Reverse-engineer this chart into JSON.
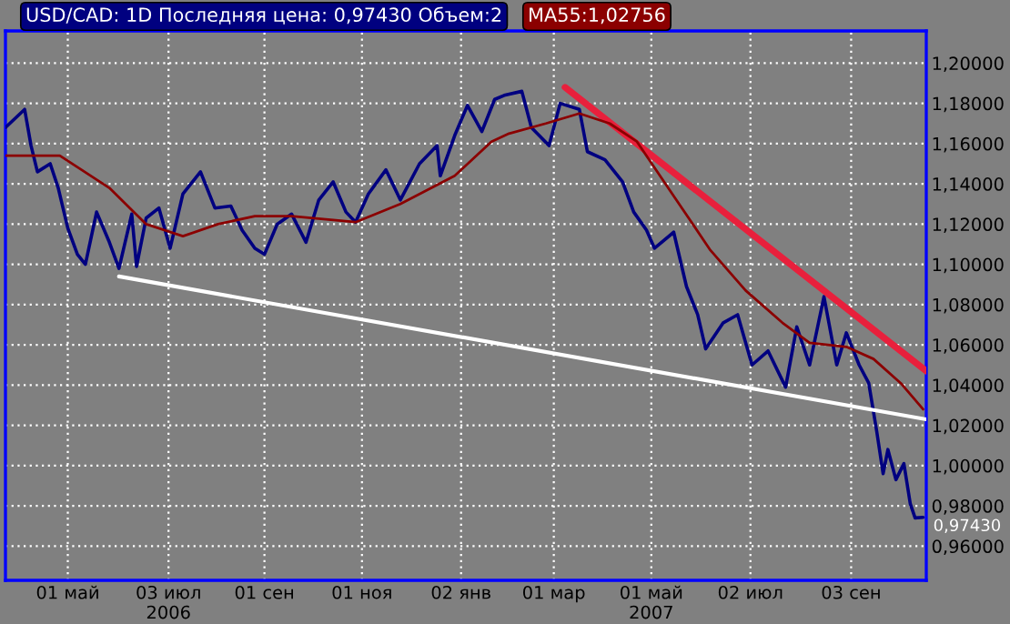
{
  "chart_data": {
    "type": "line",
    "xlim": [
      "2006-03-23",
      "2007-10-20"
    ],
    "xticks": [
      {
        "value": "2006-05-01",
        "label": "01 май"
      },
      {
        "value": "2006-07-03",
        "label": "03 июл\n2006"
      },
      {
        "value": "2006-09-01",
        "label": "01 сен"
      },
      {
        "value": "2006-11-01",
        "label": "01 ноя"
      },
      {
        "value": "2007-01-02",
        "label": "02 янв"
      },
      {
        "value": "2007-03-01",
        "label": "01 мар"
      },
      {
        "value": "2007-05-01",
        "label": "01 май\n2007"
      },
      {
        "value": "2007-07-02",
        "label": "02 июл"
      },
      {
        "value": "2007-09-03",
        "label": "03 сен"
      }
    ],
    "ylim": [
      0.943,
      1.216
    ],
    "yticks": [
      {
        "value": 0.96,
        "label": "0,96000"
      },
      {
        "value": 0.98,
        "label": "0,98000"
      },
      {
        "value": 1.0,
        "label": "1,00000"
      },
      {
        "value": 1.02,
        "label": "1,02000"
      },
      {
        "value": 1.04,
        "label": "1,04000"
      },
      {
        "value": 1.06,
        "label": "1,06000"
      },
      {
        "value": 1.08,
        "label": "1,08000"
      },
      {
        "value": 1.1,
        "label": "1,10000"
      },
      {
        "value": 1.12,
        "label": "1,12000"
      },
      {
        "value": 1.14,
        "label": "1,14000"
      },
      {
        "value": 1.16,
        "label": "1,16000"
      },
      {
        "value": 1.18,
        "label": "1,18000"
      },
      {
        "value": 1.2,
        "label": "1,20000"
      }
    ],
    "grid": true,
    "legend": "top left",
    "annotations": [
      {
        "text": "0,97430",
        "x": "2007-10-18",
        "y": 0.9743
      }
    ],
    "series": [
      {
        "name": "USD/CAD: 1D Последняя цена: 0,97430 Объем:2",
        "color": "#000080",
        "x": [
          "2006-03-23",
          "2006-04-04",
          "2006-04-08",
          "2006-04-12",
          "2006-04-20",
          "2006-04-25",
          "2006-05-01",
          "2006-05-07",
          "2006-05-12",
          "2006-05-19",
          "2006-05-27",
          "2006-06-02",
          "2006-06-10",
          "2006-06-13",
          "2006-06-19",
          "2006-06-27",
          "2006-07-04",
          "2006-07-12",
          "2006-07-23",
          "2006-08-01",
          "2006-08-11",
          "2006-08-18",
          "2006-08-26",
          "2006-09-01",
          "2006-09-09",
          "2006-09-18",
          "2006-09-27",
          "2006-10-05",
          "2006-10-14",
          "2006-10-22",
          "2006-10-28",
          "2006-11-05",
          "2006-11-16",
          "2006-11-25",
          "2006-12-07",
          "2006-12-18",
          "2006-12-20",
          "2006-12-29",
          "2007-01-06",
          "2007-01-15",
          "2007-01-23",
          "2007-01-29",
          "2007-02-09",
          "2007-02-15",
          "2007-02-26",
          "2007-03-05",
          "2007-03-17",
          "2007-03-22",
          "2007-04-02",
          "2007-04-13",
          "2007-04-20",
          "2007-04-28",
          "2007-05-03",
          "2007-05-15",
          "2007-05-23",
          "2007-05-30",
          "2007-06-04",
          "2007-06-15",
          "2007-06-24",
          "2007-07-03",
          "2007-07-13",
          "2007-07-24",
          "2007-07-31",
          "2007-08-08",
          "2007-08-17",
          "2007-08-25",
          "2007-08-31",
          "2007-09-08",
          "2007-09-14",
          "2007-09-19",
          "2007-09-23",
          "2007-09-26",
          "2007-10-01",
          "2007-10-06",
          "2007-10-10",
          "2007-10-13",
          "2007-10-18"
        ],
        "values": [
          1.168,
          1.177,
          1.159,
          1.146,
          1.15,
          1.138,
          1.118,
          1.105,
          1.1,
          1.126,
          1.111,
          1.098,
          1.125,
          1.099,
          1.123,
          1.128,
          1.108,
          1.135,
          1.146,
          1.128,
          1.129,
          1.117,
          1.108,
          1.105,
          1.12,
          1.125,
          1.111,
          1.132,
          1.141,
          1.126,
          1.121,
          1.135,
          1.147,
          1.132,
          1.15,
          1.159,
          1.144,
          1.164,
          1.179,
          1.166,
          1.182,
          1.184,
          1.186,
          1.168,
          1.159,
          1.18,
          1.177,
          1.156,
          1.152,
          1.141,
          1.126,
          1.117,
          1.108,
          1.116,
          1.089,
          1.075,
          1.058,
          1.071,
          1.075,
          1.05,
          1.057,
          1.039,
          1.069,
          1.05,
          1.084,
          1.05,
          1.066,
          1.05,
          1.041,
          1.017,
          0.996,
          1.008,
          0.993,
          1.001,
          0.981,
          0.974,
          0.9743
        ]
      },
      {
        "name": "MA55:1,02756",
        "color": "#8b0000",
        "x": [
          "2006-03-23",
          "2006-04-26",
          "2006-05-27",
          "2006-06-19",
          "2006-07-12",
          "2006-08-03",
          "2006-08-26",
          "2006-09-18",
          "2006-10-28",
          "2006-11-25",
          "2006-12-29",
          "2007-01-21",
          "2007-02-01",
          "2007-02-24",
          "2007-03-17",
          "2007-04-05",
          "2007-04-22",
          "2007-05-15",
          "2007-06-07",
          "2007-06-29",
          "2007-07-22",
          "2007-08-08",
          "2007-08-31",
          "2007-09-17",
          "2007-10-04",
          "2007-10-18"
        ],
        "values": [
          1.154,
          1.154,
          1.138,
          1.12,
          1.114,
          1.12,
          1.124,
          1.124,
          1.121,
          1.13,
          1.144,
          1.161,
          1.165,
          1.17,
          1.175,
          1.17,
          1.161,
          1.134,
          1.107,
          1.087,
          1.071,
          1.061,
          1.059,
          1.053,
          1.041,
          1.028
        ]
      },
      {
        "color": "#ffffff",
        "x": [
          "2006-06-02",
          "2007-10-20"
        ],
        "values": [
          1.094,
          1.023
        ]
      },
      {
        "color": "#e8203c",
        "x": [
          "2007-03-08",
          "2007-10-20"
        ],
        "values": [
          1.188,
          1.047
        ]
      }
    ]
  }
}
